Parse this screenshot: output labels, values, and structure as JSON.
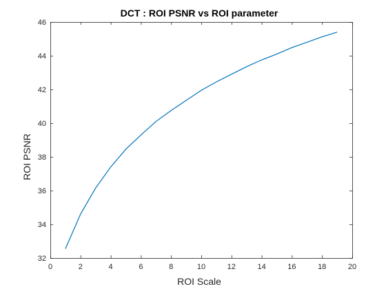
{
  "chart_data": {
    "type": "line",
    "title": "DCT : ROI PSNR vs ROI parameter",
    "xlabel": "ROI Scale",
    "ylabel": "ROI PSNR",
    "xlim": [
      0,
      20
    ],
    "ylim": [
      32,
      46
    ],
    "xticks": [
      0,
      2,
      4,
      6,
      8,
      10,
      12,
      14,
      16,
      18,
      20
    ],
    "yticks": [
      32,
      34,
      36,
      38,
      40,
      42,
      44,
      46
    ],
    "grid": false,
    "series": [
      {
        "color": "#0072bd",
        "x": [
          1,
          2,
          3,
          4,
          5,
          6,
          7,
          8,
          9,
          10,
          11,
          12,
          13,
          14,
          15,
          16,
          17,
          18,
          19
        ],
        "y": [
          32.55,
          34.6,
          36.15,
          37.4,
          38.45,
          39.3,
          40.1,
          40.75,
          41.35,
          41.95,
          42.45,
          42.9,
          43.35,
          43.75,
          44.1,
          44.48,
          44.8,
          45.12,
          45.4
        ]
      }
    ]
  }
}
